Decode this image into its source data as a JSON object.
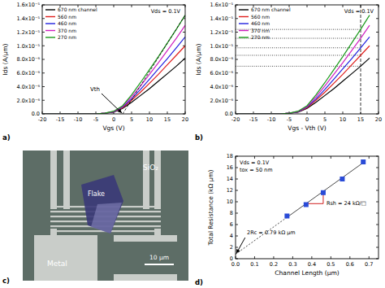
{
  "chart_data": [
    {
      "type": "line",
      "panel_label": "a)",
      "title": "Vds = 0.1V",
      "x_label": "Vgs (V)",
      "y_label": "Ids (A/µm)",
      "x": [
        -20,
        -10,
        -5,
        -2.5,
        0,
        2.5,
        5,
        7.5,
        10,
        12.5,
        15,
        17.5,
        20
      ],
      "series": [
        {
          "name": "670 nm channel",
          "color": "#000000",
          "values": [
            0,
            0,
            0,
            1e-07,
            2.5e-07,
            8e-07,
            1.7e-06,
            2.7e-06,
            3.7e-06,
            4.8e-06,
            5.9e-06,
            7e-06,
            8.2e-06
          ]
        },
        {
          "name": "560 nm",
          "color": "#e0201e",
          "values": [
            0,
            0,
            0,
            1e-07,
            3e-07,
            9e-07,
            2e-06,
            3.2e-06,
            4.5e-06,
            5.8e-06,
            7.2e-06,
            8.6e-06,
            1e-05
          ]
        },
        {
          "name": "460 nm",
          "color": "#2020e0",
          "values": [
            0,
            0,
            0,
            1e-07,
            3e-07,
            1e-06,
            2.2e-06,
            3.6e-06,
            5.1e-06,
            6.6e-06,
            8.1e-06,
            9.7e-06,
            1.13e-05
          ]
        },
        {
          "name": "370 nm",
          "color": "#d020c0",
          "values": [
            0,
            0,
            0,
            1e-07,
            3.5e-07,
            1.1e-06,
            2.5e-06,
            4.1e-06,
            5.8e-06,
            7.5e-06,
            9.3e-06,
            1.11e-05,
            1.3e-05
          ]
        },
        {
          "name": "270 nm",
          "color": "#1a9a1a",
          "values": [
            0,
            0,
            0,
            1e-07,
            4e-07,
            1.2e-06,
            2.8e-06,
            4.6e-06,
            6.5e-06,
            8.4e-06,
            1.04e-05,
            1.24e-05,
            1.45e-05
          ]
        }
      ],
      "xlim": [
        -20,
        20
      ],
      "xticks": [
        -20,
        -15,
        -10,
        -5,
        0,
        5,
        10,
        15,
        20
      ],
      "ylim": [
        0,
        1.6e-05
      ],
      "yticks": [
        {
          "value": 0,
          "label": "0.0"
        },
        {
          "value": 2e-06,
          "label": "2.0x10⁻⁶"
        },
        {
          "value": 4e-06,
          "label": "4.0x10⁻⁶"
        },
        {
          "value": 6e-06,
          "label": "6.0x10⁻⁶"
        },
        {
          "value": 8e-06,
          "label": "8.0x10⁻⁶"
        },
        {
          "value": 1e-05,
          "label": "1.0x10⁻⁵"
        },
        {
          "value": 1.2e-05,
          "label": "1.2x10⁻⁵"
        },
        {
          "value": 1.4e-05,
          "label": "1.4x10⁻⁵"
        },
        {
          "value": 1.6e-05,
          "label": "1.6x10⁻⁵"
        }
      ],
      "grid": false,
      "legend": "upper left",
      "annotations": [
        {
          "text": "Vth",
          "x": 2.5,
          "y": 0
        }
      ]
    },
    {
      "type": "line",
      "panel_label": "b)",
      "title": "Vds = 0.1V",
      "x_label": "Vgs - Vth (V)",
      "y_label": "Ids (A/µm)",
      "x": [
        -20,
        -12.5,
        -7.5,
        -5,
        -2.5,
        0,
        2.5,
        5,
        7.5,
        10,
        12.5,
        15,
        17.5
      ],
      "series": [
        {
          "name": "670 nm channel",
          "color": "#000000",
          "values": [
            0,
            0,
            0,
            1e-07,
            2.5e-07,
            8e-07,
            1.7e-06,
            2.7e-06,
            3.7e-06,
            4.8e-06,
            5.9e-06,
            7e-06,
            8.2e-06
          ]
        },
        {
          "name": "560 nm",
          "color": "#e0201e",
          "values": [
            0,
            0,
            0,
            1e-07,
            3e-07,
            9e-07,
            2e-06,
            3.2e-06,
            4.5e-06,
            5.8e-06,
            7.2e-06,
            8.6e-06,
            1e-05
          ]
        },
        {
          "name": "460 nm",
          "color": "#2020e0",
          "values": [
            0,
            0,
            0,
            1e-07,
            3e-07,
            1e-06,
            2.2e-06,
            3.6e-06,
            5.1e-06,
            6.6e-06,
            8.1e-06,
            9.7e-06,
            1.13e-05
          ]
        },
        {
          "name": "370 nm",
          "color": "#d020c0",
          "values": [
            0,
            0,
            0,
            1e-07,
            3.5e-07,
            1.1e-06,
            2.5e-06,
            4.1e-06,
            5.8e-06,
            7.5e-06,
            9.3e-06,
            1.11e-05,
            1.3e-05
          ]
        },
        {
          "name": "270 nm",
          "color": "#1a9a1a",
          "values": [
            0,
            0,
            0,
            1e-07,
            4e-07,
            1.2e-06,
            2.8e-06,
            4.6e-06,
            6.5e-06,
            8.4e-06,
            1.04e-05,
            1.24e-05,
            1.45e-05
          ]
        }
      ],
      "xlim": [
        -20,
        20
      ],
      "xticks": [
        -20,
        -15,
        -10,
        -5,
        0,
        5,
        10,
        15,
        20
      ],
      "ylim": [
        0,
        1.6e-05
      ],
      "yticks": [
        {
          "value": 0,
          "label": "0.0"
        },
        {
          "value": 2e-06,
          "label": "2.0x10⁻⁶"
        },
        {
          "value": 4e-06,
          "label": "4.0x10⁻⁶"
        },
        {
          "value": 6e-06,
          "label": "6.0x10⁻⁶"
        },
        {
          "value": 8e-06,
          "label": "8.0x10⁻⁶"
        },
        {
          "value": 1e-05,
          "label": "1.0x10⁻⁵"
        },
        {
          "value": 1.2e-05,
          "label": "1.2x10⁻⁵"
        },
        {
          "value": 1.4e-05,
          "label": "1.4x10⁻⁵"
        },
        {
          "value": 1.6e-05,
          "label": "1.6x10⁻⁵"
        }
      ],
      "grid": false,
      "legend": "upper left",
      "reference_x": 15
    },
    {
      "type": "scatter",
      "panel_label": "d)",
      "title": "Vds = 0.1V",
      "subtitle": "tox = 50 nm",
      "x_label": "Channel Length (µm)",
      "y_label": "Total Resistance (kΩ µm)",
      "x": [
        0.27,
        0.37,
        0.46,
        0.56,
        0.67
      ],
      "values": [
        7.5,
        9.5,
        11.6,
        14.0,
        17.0
      ],
      "color": "#2a4bd7",
      "marker": "square",
      "fit": {
        "intercept": 0.79,
        "slope": 24
      },
      "xlim": [
        0,
        0.75
      ],
      "xticks": [
        {
          "value": 0,
          "label": "0.0"
        },
        0.1,
        0.2,
        0.3,
        0.4,
        0.5,
        0.6,
        0.7
      ],
      "ylim": [
        0,
        18
      ],
      "yticks": [
        0,
        2,
        4,
        6,
        8,
        10,
        12,
        14,
        16,
        18
      ],
      "grid": false,
      "annotations": [
        {
          "text": "2Rc = 0.79 kΩ µm"
        },
        {
          "text": "Rsh = 24 kΩ/□"
        }
      ]
    }
  ],
  "image_panel": {
    "panel_label": "c)",
    "labels": {
      "substrate": "SiO₂",
      "flake": "Flake",
      "metal": "Metal",
      "scale_bar": "10 µm"
    }
  }
}
